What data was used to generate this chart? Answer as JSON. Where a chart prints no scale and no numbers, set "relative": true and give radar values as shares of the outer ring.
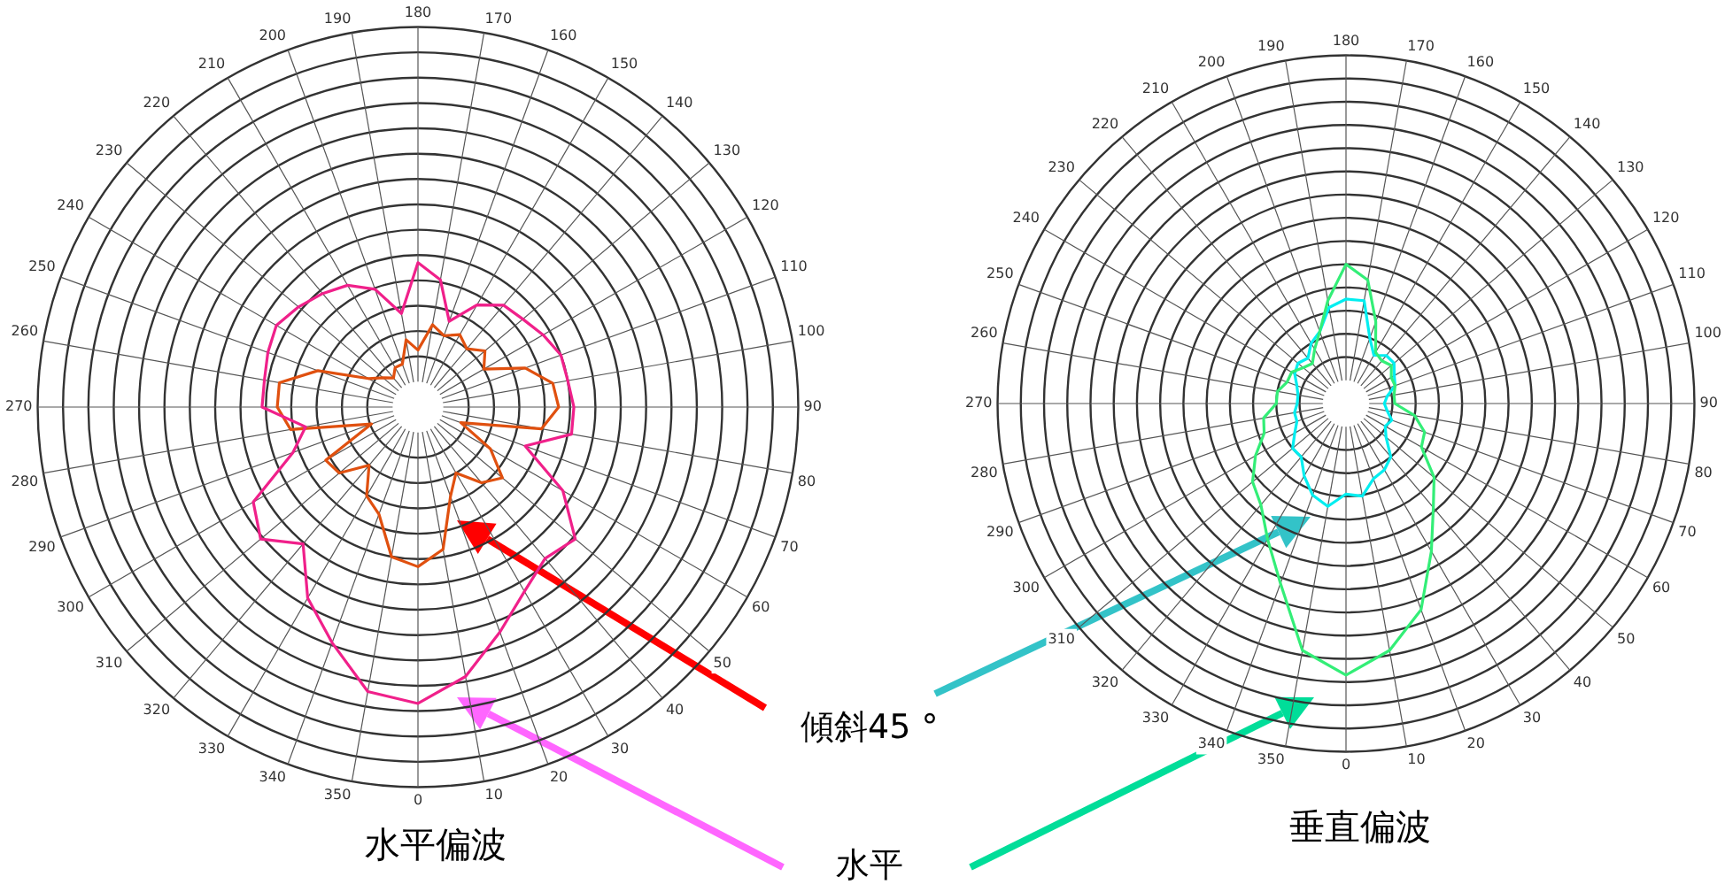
{
  "chart_data": [
    {
      "type": "radar",
      "title": "水平偏波",
      "relative": true,
      "grid": true,
      "marker": "none",
      "legend": false,
      "categories": [
        "180",
        "170",
        "160",
        "150",
        "140",
        "130",
        "120",
        "110",
        "100",
        "90",
        "80",
        "70",
        "60",
        "50",
        "40",
        "30",
        "20",
        "10",
        "0",
        "350",
        "340",
        "330",
        "320",
        "310",
        "300",
        "290",
        "280",
        "270",
        "260",
        "250",
        "240",
        "230",
        "220",
        "210",
        "200",
        "190"
      ],
      "series": [
        {
          "color": "#f0208a",
          "values": [
            0.38,
            0.34,
            0.24,
            0.31,
            0.35,
            0.36,
            0.38,
            0.4,
            0.4,
            0.41,
            0.41,
            0.3,
            0.44,
            0.54,
            0.52,
            0.56,
            0.63,
            0.72,
            0.78,
            0.76,
            0.66,
            0.58,
            0.47,
            0.54,
            0.5,
            0.35,
            0.3,
            0.41,
            0.41,
            0.42,
            0.43,
            0.41,
            0.39,
            0.37,
            0.33,
            0.25
          ]
        },
        {
          "color": "#e0500f",
          "values": [
            0.15,
            0.22,
            0.2,
            0.22,
            0.2,
            0.23,
            0.2,
            0.3,
            0.36,
            0.37,
            0.33,
            0.12,
            0.22,
            0.29,
            0.26,
            0.2,
            0.25,
            0.38,
            0.42,
            0.4,
            0.3,
            0.27,
            0.2,
            0.27,
            0.28,
            0.13,
            0.34,
            0.37,
            0.37,
            0.28,
            0.15,
            0.12,
            0.1,
            0.12,
            0.12,
            0.18
          ]
        }
      ],
      "annotations": [
        "傾斜45 °",
        "水平"
      ]
    },
    {
      "type": "radar",
      "title": "垂直偏波",
      "relative": true,
      "grid": true,
      "marker": "none",
      "legend": false,
      "categories": [
        "180",
        "170",
        "160",
        "150",
        "140",
        "130",
        "120",
        "110",
        "100",
        "90",
        "80",
        "70",
        "60",
        "50",
        "40",
        "30",
        "20",
        "10",
        "0",
        "350",
        "340",
        "330",
        "320",
        "310",
        "300",
        "290",
        "280",
        "270",
        "260",
        "250",
        "240",
        "230",
        "220",
        "210",
        "200",
        "190"
      ],
      "series": [
        {
          "color": "#33ee77",
          "values": [
            0.4,
            0.36,
            0.25,
            0.17,
            0.16,
            0.17,
            0.15,
            0.15,
            0.14,
            0.14,
            0.2,
            0.24,
            0.25,
            0.33,
            0.39,
            0.49,
            0.63,
            0.72,
            0.78,
            0.72,
            0.55,
            0.45,
            0.38,
            0.35,
            0.3,
            0.25,
            0.24,
            0.2,
            0.2,
            0.18,
            0.18,
            0.16,
            0.15,
            0.18,
            0.22,
            0.3
          ]
        },
        {
          "color": "#00eef0",
          "values": [
            0.3,
            0.3,
            0.2,
            0.16,
            0.18,
            0.18,
            0.16,
            0.15,
            0.12,
            0.11,
            0.12,
            0.14,
            0.13,
            0.15,
            0.2,
            0.22,
            0.23,
            0.27,
            0.26,
            0.3,
            0.28,
            0.24,
            0.2,
            0.2,
            0.17,
            0.15,
            0.15,
            0.14,
            0.14,
            0.15,
            0.17,
            0.18,
            0.17,
            0.2,
            0.22,
            0.28
          ]
        }
      ]
    }
  ]
}
